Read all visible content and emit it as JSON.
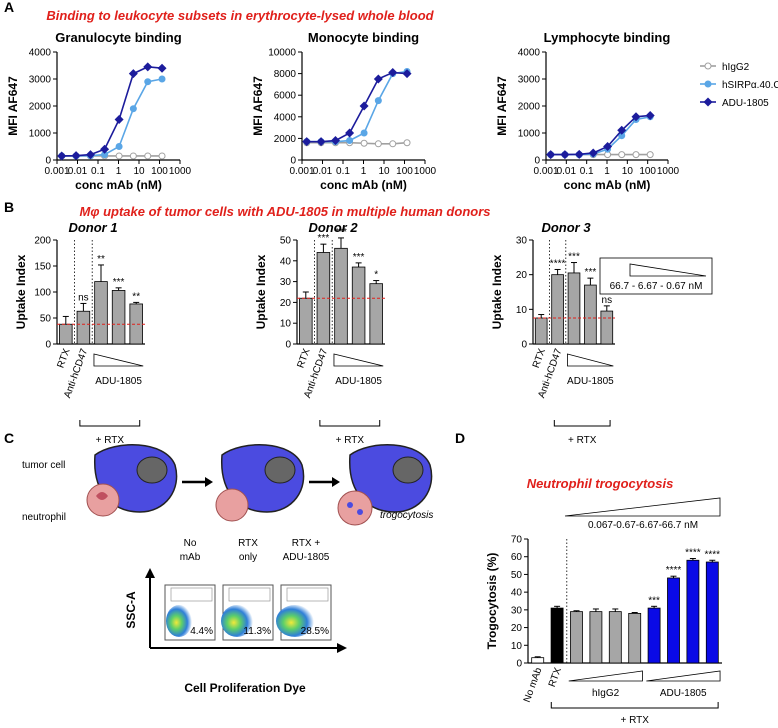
{
  "panels": {
    "A": {
      "letter": "A",
      "title": "Binding to leukocyte subsets in erythrocyte-lysed whole blood"
    },
    "B": {
      "letter": "B",
      "title": "Mφ uptake of tumor cells with ADU-1805 in multiple human donors"
    },
    "C": {
      "letter": "C",
      "tumor_cell": "tumor cell",
      "neutrophil": "neutrophil",
      "trogocytosis": "trogocytosis",
      "samples": [
        {
          "title_lines": [
            "No",
            "mAb"
          ],
          "gate": "4.4%"
        },
        {
          "title_lines": [
            "RTX",
            "only"
          ],
          "gate": "11.3%"
        },
        {
          "title_lines": [
            "RTX +",
            "ADU-1805"
          ],
          "gate": "28.5%"
        }
      ],
      "x_label": "Cell Proliferation Dye",
      "y_label": "SSC-A"
    },
    "D": {
      "letter": "D"
    }
  },
  "chart_data": [
    {
      "type": "line",
      "title": "Granulocyte binding",
      "x_label": "conc mAb (nM)",
      "y_label": "MFI AF647",
      "xscale": "log",
      "legend": "right",
      "xlim": [
        0.001,
        1000
      ],
      "xticks": [
        0.001,
        0.01,
        0.1,
        1,
        10,
        100,
        1000
      ],
      "ylim": [
        0,
        4000
      ],
      "yticks": [
        0,
        1000,
        2000,
        3000,
        4000
      ],
      "x": [
        0.0017,
        0.0085,
        0.043,
        0.21,
        1.07,
        5.3,
        26.7,
        133
      ],
      "series": [
        {
          "name": "hIgG2",
          "color": "#a0a0a0",
          "marker": "open-circle",
          "values": [
            150,
            150,
            150,
            150,
            150,
            150,
            150,
            150
          ]
        },
        {
          "name": "hSIRPα.40.C2",
          "color": "#5aa6e6",
          "marker": "circle",
          "values": [
            150,
            150,
            160,
            200,
            500,
            1900,
            2900,
            3000
          ]
        },
        {
          "name": "ADU-1805",
          "color": "#1c1c9c",
          "marker": "diamond",
          "values": [
            150,
            160,
            200,
            400,
            1500,
            3200,
            3450,
            3400
          ]
        }
      ]
    },
    {
      "type": "line",
      "title": "Monocyte binding",
      "x_label": "conc mAb (nM)",
      "y_label": "MFI AF647",
      "xscale": "log",
      "xlim": [
        0.001,
        1000
      ],
      "xticks": [
        0.001,
        0.01,
        0.1,
        1,
        10,
        100,
        1000
      ],
      "ylim": [
        0,
        10000
      ],
      "yticks": [
        0,
        2000,
        4000,
        6000,
        8000,
        10000
      ],
      "x": [
        0.0017,
        0.0085,
        0.043,
        0.21,
        1.07,
        5.3,
        26.7,
        133
      ],
      "series": [
        {
          "color": "#a0a0a0",
          "marker": "open-circle",
          "values": [
            1600,
            1600,
            1600,
            1600,
            1550,
            1500,
            1500,
            1600
          ]
        },
        {
          "color": "#5aa6e6",
          "marker": "circle",
          "values": [
            1700,
            1700,
            1700,
            1800,
            2500,
            5500,
            8000,
            8200
          ]
        },
        {
          "color": "#1c1c9c",
          "marker": "diamond",
          "values": [
            1700,
            1700,
            1800,
            2500,
            5000,
            7500,
            8100,
            8000
          ]
        }
      ]
    },
    {
      "type": "line",
      "title": "Lymphocyte binding",
      "x_label": "conc mAb (nM)",
      "y_label": "MFI AF647",
      "xscale": "log",
      "xlim": [
        0.001,
        1000
      ],
      "xticks": [
        0.001,
        0.01,
        0.1,
        1,
        10,
        100,
        1000
      ],
      "ylim": [
        0,
        4000
      ],
      "yticks": [
        0,
        1000,
        2000,
        3000,
        4000
      ],
      "x": [
        0.0017,
        0.0085,
        0.043,
        0.21,
        1.07,
        5.3,
        26.7,
        133
      ],
      "series": [
        {
          "color": "#a0a0a0",
          "marker": "open-circle",
          "values": [
            200,
            200,
            200,
            200,
            200,
            200,
            200,
            200
          ]
        },
        {
          "color": "#5aa6e6",
          "marker": "circle",
          "values": [
            200,
            200,
            200,
            220,
            400,
            900,
            1500,
            1600
          ]
        },
        {
          "color": "#1c1c9c",
          "marker": "diamond",
          "values": [
            200,
            200,
            210,
            260,
            500,
            1100,
            1600,
            1650
          ]
        }
      ]
    },
    {
      "type": "bar",
      "title": "Donor 1",
      "y_label": "Uptake Index",
      "ylim": [
        0,
        200
      ],
      "yticks": [
        0,
        50,
        100,
        150,
        200
      ],
      "categories": [
        "RTX",
        "Anti-hCD47",
        null,
        null,
        null
      ],
      "values": [
        38,
        63,
        120,
        103,
        77
      ],
      "errors": [
        15,
        15,
        32,
        5,
        3
      ],
      "sig_labels": [
        null,
        "ns",
        "**",
        "***",
        "**"
      ],
      "color": "#a6a6a6",
      "reference_line": true,
      "reference_color": "#e0201b",
      "group_label": "ADU-1805",
      "bracket_label": "+ RTX"
    },
    {
      "type": "bar",
      "title": "Donor 2",
      "y_label": "Uptake Index",
      "ylim": [
        0,
        50
      ],
      "yticks": [
        0,
        10,
        20,
        30,
        40,
        50
      ],
      "categories": [
        "RTX",
        "Anti-hCD47",
        null,
        null,
        null
      ],
      "values": [
        22,
        44,
        46,
        37,
        29
      ],
      "errors": [
        3,
        4,
        5,
        2,
        1.5
      ],
      "sig_labels": [
        null,
        "***",
        "***",
        "***",
        "*"
      ],
      "color": "#a6a6a6",
      "reference_line": true,
      "reference_color": "#e0201b",
      "group_label": "ADU-1805",
      "bracket_label": "+ RTX"
    },
    {
      "type": "bar",
      "title": "Donor 3",
      "y_label": "Uptake Index",
      "ylim": [
        0,
        30
      ],
      "yticks": [
        0,
        10,
        20,
        30
      ],
      "categories": [
        "RTX",
        "Anti-hCD47",
        null,
        null,
        null
      ],
      "values": [
        7.5,
        20,
        20.5,
        17,
        9.5
      ],
      "errors": [
        1,
        1.5,
        3,
        2,
        1.5
      ],
      "sig_labels": [
        null,
        "****",
        "***",
        "***",
        "ns"
      ],
      "color": "#a6a6a6",
      "reference_line": true,
      "reference_color": "#e0201b",
      "group_label": "ADU-1805",
      "bracket_label": "+ RTX",
      "dose_label": "66.7 - 6.67 - 0.67 nM"
    },
    {
      "type": "bar",
      "title": "Neutrophil trogocytosis",
      "y_label": "Trogocytosis (%)",
      "ylim": [
        0,
        70
      ],
      "yticks": [
        0,
        10,
        20,
        30,
        40,
        50,
        60,
        70
      ],
      "categories": [
        "No mAb",
        "RTX",
        null,
        null,
        null,
        null,
        null,
        null,
        null,
        null
      ],
      "values": [
        3,
        31,
        29,
        29,
        29,
        28,
        31,
        48,
        58,
        57
      ],
      "errors": [
        0.5,
        1,
        0.5,
        1.5,
        1.5,
        0.5,
        1,
        1,
        1,
        1
      ],
      "sig_labels": [
        null,
        null,
        null,
        null,
        null,
        null,
        "***",
        "****",
        "****",
        "****"
      ],
      "colors": [
        "#ffffff",
        "#000000",
        "#a6a6a6",
        "#a6a6a6",
        "#a6a6a6",
        "#a6a6a6",
        "#0a0ae6",
        "#0a0ae6",
        "#0a0ae6",
        "#0a0ae6"
      ],
      "group_labels": [
        "hIgG2",
        "ADU-1805"
      ],
      "bracket_label": "+ RTX",
      "dose_label": "0.067-0.67-6.67-66.7 nM"
    }
  ]
}
